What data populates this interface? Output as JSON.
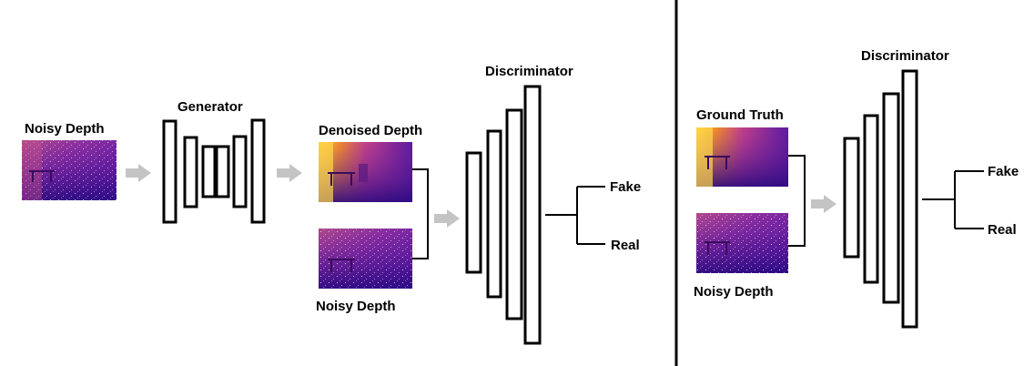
{
  "left_panel": {
    "input_label": "Noisy Depth",
    "generator_label": "Generator",
    "denoised_label": "Denoised Depth",
    "noisy_label": "Noisy Depth",
    "discriminator_label": "Discriminator",
    "fake_label": "Fake",
    "real_label": "Real"
  },
  "right_panel": {
    "ground_truth_label": "Ground Truth",
    "noisy_label": "Noisy Depth",
    "discriminator_label": "Discriminator",
    "fake_label": "Fake",
    "real_label": "Real"
  },
  "colors": {
    "arrow": "#c4c4c4",
    "depth_dark": "#3a0a8c",
    "depth_mid": "#a0309a",
    "depth_warm": "#e0503a",
    "depth_hot": "#ffcc33"
  }
}
